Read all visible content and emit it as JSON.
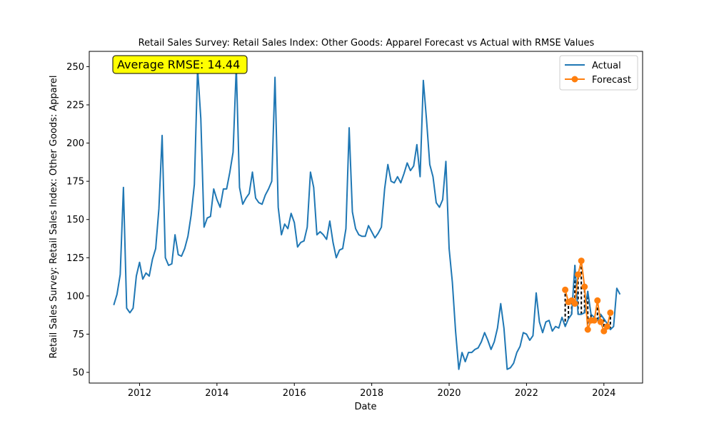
{
  "chart_data": {
    "type": "line",
    "title": "Retail Sales Survey: Retail Sales Index: Other Goods: Apparel Forecast vs Actual with RMSE Values",
    "xlabel": "Date",
    "ylabel": "Retail Sales Survey: Retail Sales Index: Other Goods: Apparel",
    "xlim": [
      2010.7,
      2025.0
    ],
    "ylim": [
      43,
      260
    ],
    "x_ticks": [
      2012,
      2014,
      2016,
      2018,
      2020,
      2022,
      2024
    ],
    "x_tick_labels": [
      "2012",
      "2014",
      "2016",
      "2018",
      "2020",
      "2022",
      "2024"
    ],
    "y_ticks": [
      50,
      75,
      100,
      125,
      150,
      175,
      200,
      225,
      250
    ],
    "y_tick_labels": [
      "50",
      "75",
      "100",
      "125",
      "150",
      "175",
      "200",
      "225",
      "250"
    ],
    "annotation": "Average RMSE: 14.44",
    "legend_position": "top-right",
    "series": [
      {
        "name": "Actual",
        "color": "#1f77b4",
        "marker": "none",
        "start": "2011-05",
        "frequency": "monthly",
        "values": [
          94,
          101,
          114,
          171,
          92,
          89,
          92,
          113,
          122,
          111,
          115,
          113,
          124,
          131,
          157,
          205,
          125,
          120,
          121,
          140,
          127,
          126,
          131,
          139,
          153,
          173,
          249,
          216,
          145,
          151,
          152,
          170,
          163,
          158,
          170,
          170,
          181,
          194,
          250,
          171,
          160,
          164,
          167,
          181,
          164,
          161,
          160,
          166,
          170,
          175,
          243,
          158,
          140,
          147,
          144,
          154,
          148,
          132,
          135,
          136,
          145,
          181,
          171,
          140,
          142,
          140,
          137,
          149,
          135,
          125,
          130,
          131,
          144,
          210,
          155,
          144,
          140,
          139,
          139,
          146,
          142,
          138,
          141,
          145,
          170,
          186,
          175,
          174,
          178,
          174,
          180,
          187,
          182,
          185,
          199,
          178,
          241,
          215,
          186,
          178,
          161,
          158,
          163,
          188,
          131,
          109,
          77,
          52,
          63,
          57,
          63,
          63,
          65,
          66,
          70,
          76,
          71,
          65,
          70,
          79,
          95,
          79,
          52,
          53,
          56,
          63,
          67,
          76,
          75,
          71,
          74,
          102,
          83,
          76,
          83,
          84,
          77,
          80,
          79,
          86,
          80,
          85,
          88,
          120,
          88,
          88,
          89,
          103,
          88,
          86,
          84,
          88,
          85,
          82,
          78,
          80,
          105,
          101
        ]
      },
      {
        "name": "Forecast",
        "color": "#ff7f0e",
        "marker": "circle",
        "start": "2023-01",
        "frequency": "monthly",
        "values": [
          104,
          96,
          97,
          95,
          114,
          123,
          106,
          78,
          84,
          84,
          97,
          83,
          77,
          80,
          89
        ]
      }
    ]
  }
}
